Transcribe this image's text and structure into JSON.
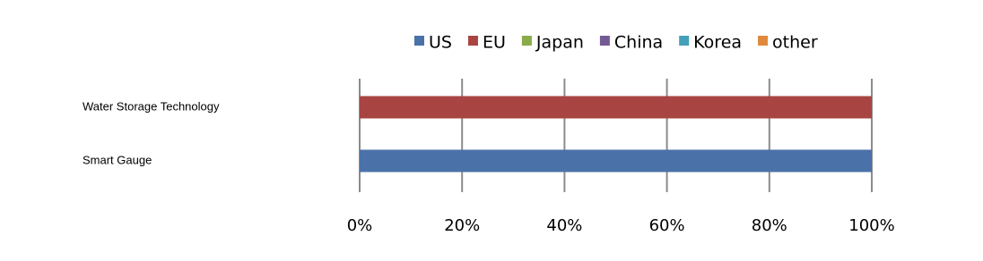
{
  "chart_data": {
    "type": "stacked-bar-horizontal",
    "categories": [
      "Water Storage Technology",
      "Smart Gauge"
    ],
    "series": [
      {
        "name": "US",
        "color": "#4a72a8",
        "values": [
          0,
          100
        ]
      },
      {
        "name": "EU",
        "color": "#a84442",
        "values": [
          100,
          0
        ]
      },
      {
        "name": "Japan",
        "color": "#8aab4a",
        "values": [
          0,
          0
        ]
      },
      {
        "name": "China",
        "color": "#735a94",
        "values": [
          0,
          0
        ]
      },
      {
        "name": "Korea",
        "color": "#43a0b8",
        "values": [
          0,
          0
        ]
      },
      {
        "name": "other",
        "color": "#e0893c",
        "values": [
          0,
          0
        ]
      }
    ],
    "xlim": [
      0,
      100
    ],
    "xticks": [
      {
        "value": 0,
        "label": "0%"
      },
      {
        "value": 20,
        "label": "20%"
      },
      {
        "value": 40,
        "label": "40%"
      },
      {
        "value": 60,
        "label": "60%"
      },
      {
        "value": 80,
        "label": "80%"
      },
      {
        "value": 100,
        "label": "100%"
      }
    ],
    "grid": true,
    "legend": "top"
  }
}
